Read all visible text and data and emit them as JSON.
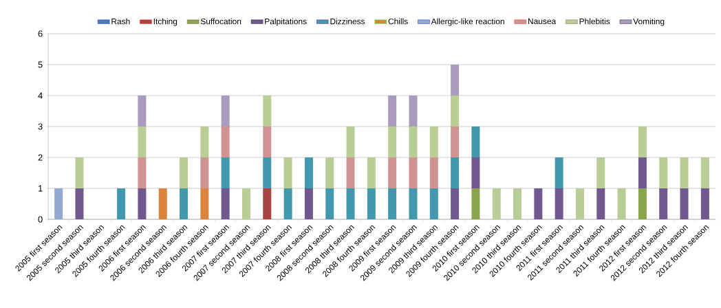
{
  "chart_data": {
    "type": "bar",
    "stacked": true,
    "categories": [
      "2005 first season",
      "2005 second season",
      "2005 third season",
      "2005 fourth season",
      "2006 first season",
      "2006 second season",
      "2006 third season",
      "2006 fourth season",
      "2007 first season",
      "2007 second season",
      "2007 third season",
      "2007 fourth season",
      "2008 first season",
      "2008 second season",
      "2008 third season",
      "2008 fourth season",
      "2009 first season",
      "2009 second season",
      "2009 third season",
      "2009 fourth season",
      "2010 first season",
      "2010 second season",
      "2010 third season",
      "2010 fourth season",
      "2011 first season",
      "2011 second season",
      "2011 third season",
      "2011 fourth season",
      "2012 first season",
      "2012 second season",
      "2012 third season",
      "2012 fourth season"
    ],
    "series": [
      {
        "name": "Rash",
        "color": "#4a7ebb",
        "values": [
          0,
          0,
          0,
          0,
          0,
          0,
          0,
          0,
          0,
          0,
          0,
          0,
          0,
          0,
          0,
          0,
          0,
          0,
          0,
          0,
          0,
          0,
          0,
          0,
          0,
          0,
          0,
          0,
          0,
          0,
          0,
          0
        ]
      },
      {
        "name": "Itching",
        "color": "#a94442",
        "values": [
          0,
          0,
          0,
          0,
          0,
          0,
          0,
          0,
          0,
          0,
          1,
          0,
          0,
          0,
          0,
          0,
          0,
          0,
          0,
          0,
          0,
          0,
          0,
          0,
          0,
          0,
          0,
          0,
          0,
          0,
          0,
          0
        ]
      },
      {
        "name": "Suffocation",
        "color": "#89a54e",
        "values": [
          0,
          0,
          0,
          0,
          0,
          0,
          0,
          0,
          0,
          0,
          0,
          0,
          0,
          0,
          0,
          0,
          0,
          0,
          0,
          0,
          1,
          0,
          0,
          0,
          0,
          0,
          0,
          0,
          1,
          0,
          0,
          0
        ]
      },
      {
        "name": "Palpitations",
        "color": "#71588f",
        "values": [
          0,
          1,
          0,
          0,
          1,
          0,
          0,
          0,
          1,
          0,
          0,
          0,
          1,
          0,
          0,
          0,
          0,
          0,
          0,
          1,
          1,
          0,
          0,
          1,
          1,
          0,
          1,
          0,
          1,
          1,
          1,
          1
        ]
      },
      {
        "name": "Dizziness",
        "color": "#4198af",
        "values": [
          0,
          0,
          0,
          1,
          0,
          0,
          1,
          0,
          1,
          0,
          1,
          1,
          1,
          1,
          1,
          1,
          1,
          1,
          1,
          1,
          1,
          0,
          0,
          0,
          1,
          0,
          0,
          0,
          0,
          0,
          0,
          0
        ]
      },
      {
        "name": "Chills",
        "color": "#db843d",
        "values": [
          0,
          0,
          0,
          0,
          0,
          1,
          0,
          1,
          0,
          0,
          0,
          0,
          0,
          0,
          0,
          0,
          0,
          0,
          0,
          0,
          0,
          0,
          0,
          0,
          0,
          0,
          0,
          0,
          0,
          0,
          0,
          0
        ]
      },
      {
        "name": "Allergic-like reaction",
        "color": "#93a9cf",
        "values": [
          1,
          0,
          0,
          0,
          0,
          0,
          0,
          0,
          0,
          0,
          0,
          0,
          0,
          0,
          0,
          0,
          0,
          0,
          0,
          0,
          0,
          0,
          0,
          0,
          0,
          0,
          0,
          0,
          0,
          0,
          0,
          0
        ]
      },
      {
        "name": "Nausea",
        "color": "#d19392",
        "values": [
          0,
          0,
          0,
          0,
          1,
          0,
          0,
          1,
          1,
          0,
          1,
          0,
          0,
          0,
          1,
          0,
          1,
          1,
          1,
          1,
          0,
          0,
          0,
          0,
          0,
          0,
          0,
          0,
          0,
          0,
          0,
          0
        ]
      },
      {
        "name": "Phlebitis",
        "color": "#b9cd96",
        "values": [
          0,
          1,
          0,
          0,
          1,
          0,
          1,
          1,
          0,
          1,
          1,
          1,
          0,
          1,
          1,
          1,
          1,
          1,
          1,
          1,
          0,
          1,
          1,
          0,
          0,
          1,
          1,
          1,
          1,
          1,
          1,
          1
        ]
      },
      {
        "name": "Vomiting",
        "color": "#a99bbd",
        "values": [
          0,
          0,
          0,
          0,
          1,
          0,
          0,
          0,
          1,
          0,
          0,
          0,
          0,
          0,
          0,
          0,
          1,
          1,
          0,
          1,
          0,
          0,
          0,
          0,
          0,
          0,
          0,
          0,
          0,
          0,
          0,
          0
        ]
      }
    ],
    "ylim": [
      0,
      6
    ],
    "yticks": [
      0,
      1,
      2,
      3,
      4,
      5,
      6
    ],
    "grid": "y",
    "legend": "top"
  }
}
